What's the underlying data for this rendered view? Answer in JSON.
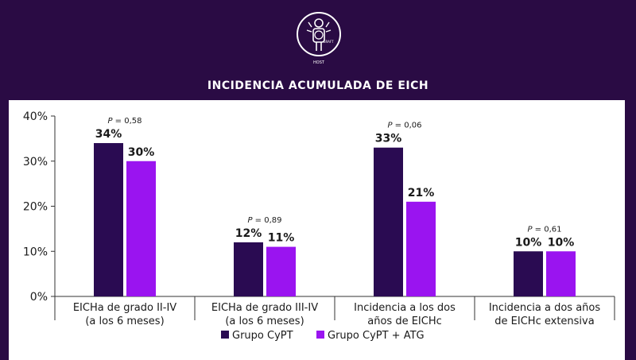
{
  "title": "INCIDENCIA ACUMULADA DE EICH",
  "logo": {
    "icon": "hospital-logo-icon",
    "text_top": "GRAFT",
    "text_bottom": "HOST"
  },
  "colors": {
    "background": "#2a0b44",
    "series1": "#2a0b52",
    "series2": "#9a14f0"
  },
  "chart_data": {
    "type": "bar",
    "categories": [
      [
        "EICHa de grado II-IV",
        "(a los 6 meses)"
      ],
      [
        "EICHa de grado III-IV",
        "(a los 6 meses)"
      ],
      [
        "Incidencia a los dos",
        "años de EICHc"
      ],
      [
        "Incidencia a dos años",
        "de EICHc extensiva"
      ]
    ],
    "series": [
      {
        "name": "Grupo CyPT",
        "values": [
          34,
          12,
          33,
          10
        ],
        "labels": [
          "34%",
          "12%",
          "33%",
          "10%"
        ]
      },
      {
        "name": "Grupo CyPT + ATG",
        "values": [
          30,
          11,
          21,
          10
        ],
        "labels": [
          "30%",
          "11%",
          "21%",
          "10%"
        ]
      }
    ],
    "p_values": [
      {
        "prefix": "P",
        "value": " = 0,58"
      },
      {
        "prefix": "P",
        "value": " = 0,89"
      },
      {
        "prefix": "P",
        "value": " = 0,06"
      },
      {
        "prefix": "P",
        "value": " = 0,61"
      }
    ],
    "ylim": [
      0,
      40
    ],
    "yticks": [
      0,
      10,
      20,
      30,
      40
    ],
    "ytick_labels": [
      "0%",
      "10%",
      "20%",
      "30%",
      "40%"
    ],
    "legend_position": "bottom-center"
  }
}
